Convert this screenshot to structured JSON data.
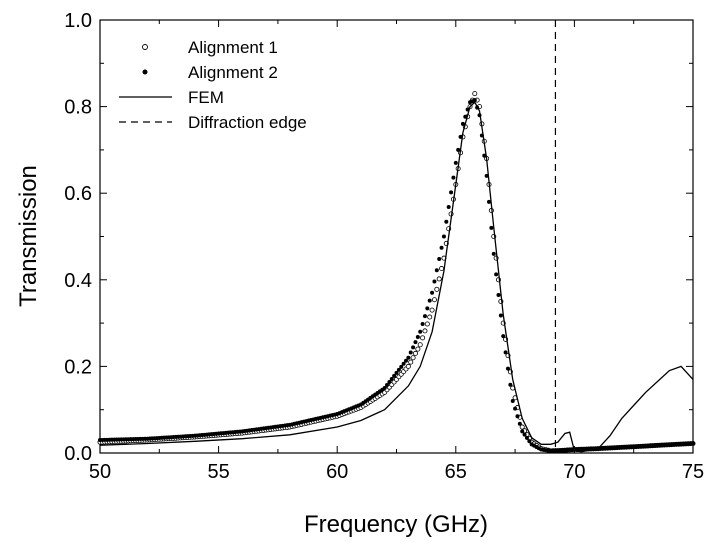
{
  "chart_data": {
    "type": "line",
    "xlabel": "Frequency (GHz)",
    "ylabel": "Transmission",
    "xlim": [
      50,
      75
    ],
    "ylim": [
      0.0,
      1.0
    ],
    "x_ticks": [
      "50",
      "55",
      "60",
      "65",
      "70",
      "75"
    ],
    "y_ticks": [
      "0.0",
      "0.2",
      "0.4",
      "0.6",
      "0.8",
      "1.0"
    ],
    "legend_position": "top-left",
    "grid": false,
    "series": [
      {
        "name": "Alignment 1",
        "style": "open-circle",
        "x": [
          50,
          52,
          54,
          56,
          58,
          60,
          61,
          62,
          63,
          63.5,
          64,
          64.5,
          65,
          65.3,
          65.6,
          65.8,
          66,
          66.3,
          66.6,
          67,
          67.4,
          67.8,
          68.2,
          68.6,
          69,
          69.5,
          70,
          71,
          72,
          73,
          74,
          75
        ],
        "y": [
          0.025,
          0.03,
          0.037,
          0.046,
          0.06,
          0.085,
          0.105,
          0.14,
          0.2,
          0.25,
          0.33,
          0.45,
          0.62,
          0.73,
          0.8,
          0.83,
          0.8,
          0.68,
          0.5,
          0.3,
          0.15,
          0.06,
          0.025,
          0.01,
          0.005,
          0.006,
          0.008,
          0.01,
          0.013,
          0.016,
          0.019,
          0.022
        ]
      },
      {
        "name": "Alignment 2",
        "style": "filled-circle",
        "x": [
          50,
          52,
          54,
          56,
          58,
          60,
          61,
          62,
          63,
          63.5,
          64,
          64.5,
          65,
          65.3,
          65.6,
          65.8,
          66,
          66.3,
          66.6,
          67,
          67.4,
          67.8,
          68.2,
          68.6,
          69,
          69.5,
          70,
          71,
          72,
          73,
          74,
          75
        ],
        "y": [
          0.03,
          0.033,
          0.04,
          0.05,
          0.065,
          0.09,
          0.112,
          0.15,
          0.22,
          0.28,
          0.37,
          0.5,
          0.67,
          0.76,
          0.81,
          0.815,
          0.78,
          0.64,
          0.46,
          0.27,
          0.12,
          0.05,
          0.02,
          0.008,
          0.005,
          0.006,
          0.008,
          0.01,
          0.013,
          0.016,
          0.019,
          0.022
        ]
      },
      {
        "name": "FEM",
        "style": "solid",
        "x": [
          50,
          52,
          54,
          56,
          58,
          60,
          61,
          62,
          63,
          63.5,
          64,
          64.5,
          65,
          65.3,
          65.6,
          65.8,
          66,
          66.3,
          66.6,
          67,
          67.4,
          67.8,
          68.2,
          68.6,
          69,
          69.3,
          69.6,
          69.8,
          70,
          70.3,
          71,
          71.5,
          72,
          73,
          74,
          74.5,
          75
        ],
        "y": [
          0.018,
          0.022,
          0.027,
          0.033,
          0.042,
          0.06,
          0.075,
          0.1,
          0.155,
          0.2,
          0.28,
          0.42,
          0.62,
          0.74,
          0.8,
          0.81,
          0.79,
          0.68,
          0.52,
          0.32,
          0.17,
          0.08,
          0.035,
          0.02,
          0.02,
          0.025,
          0.045,
          0.048,
          0.005,
          0.003,
          0.01,
          0.04,
          0.08,
          0.14,
          0.19,
          0.2,
          0.17
        ]
      }
    ],
    "reference_lines": [
      {
        "name": "Diffraction edge",
        "style": "dashed",
        "x": 69.2
      }
    ]
  }
}
